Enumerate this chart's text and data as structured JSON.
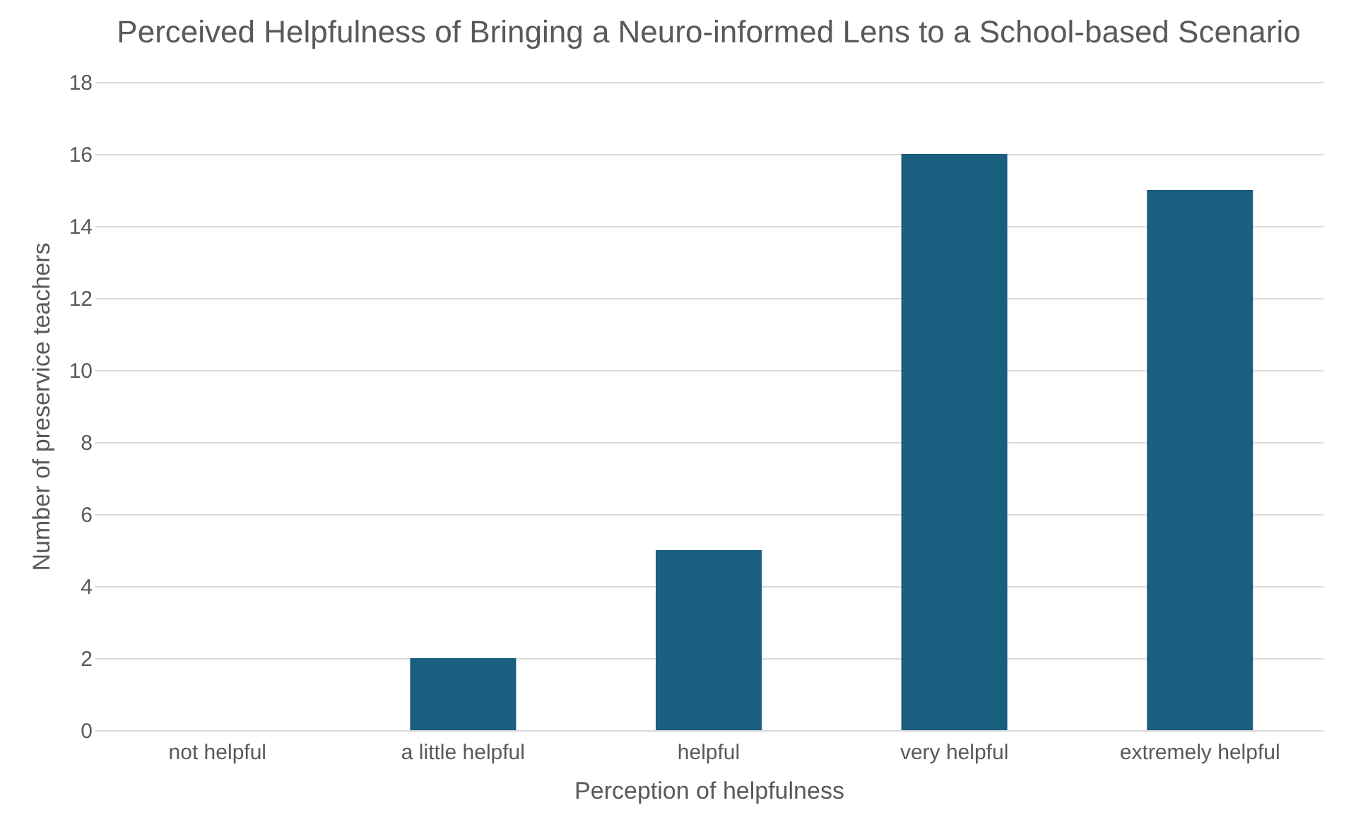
{
  "chart_data": {
    "type": "bar",
    "title": "Perceived Helpfulness of Bringing a Neuro-informed Lens to a School-based Scenario",
    "xlabel": "Perception of helpfulness",
    "ylabel": "Number of preservice teachers",
    "categories": [
      "not helpful",
      "a little helpful",
      "helpful",
      "very helpful",
      "extremely helpful"
    ],
    "values": [
      0,
      2,
      5,
      16,
      15
    ],
    "color": "#1a5e80",
    "ylim": [
      0,
      18
    ],
    "yticks": [
      0,
      2,
      4,
      6,
      8,
      10,
      12,
      14,
      16,
      18
    ],
    "grid": "y"
  }
}
